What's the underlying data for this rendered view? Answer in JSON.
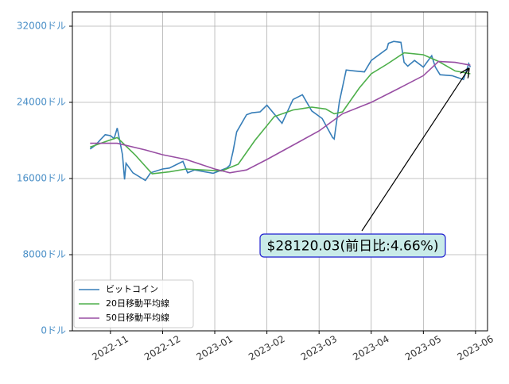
{
  "chart_data": {
    "type": "line",
    "xlim": [
      -0.73,
      7.23
    ],
    "xticks": [
      {
        "value": 0,
        "label": "2022-11"
      },
      {
        "value": 1,
        "label": "2022-12"
      },
      {
        "value": 2,
        "label": "2023-01"
      },
      {
        "value": 3,
        "label": "2023-02"
      },
      {
        "value": 4,
        "label": "2023-03"
      },
      {
        "value": 5,
        "label": "2023-04"
      },
      {
        "value": 6,
        "label": "2023-05"
      },
      {
        "value": 7,
        "label": "2023-06"
      }
    ],
    "ylim": [
      0,
      33500
    ],
    "yticks": [
      {
        "value": 0,
        "label": "0ドル"
      },
      {
        "value": 8000,
        "label": "8000ドル"
      },
      {
        "value": 16000,
        "label": "16000ドル"
      },
      {
        "value": 24000,
        "label": "24000ドル"
      },
      {
        "value": 32000,
        "label": "32000ドル"
      }
    ],
    "grid": true,
    "legend": "lower left",
    "annotation": "$28120.03(前日比:4.66%)",
    "series": [
      {
        "name": "ビットコイン",
        "color": "#377eb8",
        "x": [
          -0.39,
          -0.29,
          -0.19,
          -0.1,
          0.0,
          0.07,
          0.13,
          0.23,
          0.27,
          0.3,
          0.43,
          0.67,
          0.77,
          1.0,
          1.13,
          1.39,
          1.48,
          1.61,
          1.97,
          2.23,
          2.29,
          2.35,
          2.42,
          2.61,
          2.71,
          2.87,
          3.0,
          3.29,
          3.5,
          3.68,
          3.86,
          4.06,
          4.26,
          4.29,
          4.39,
          4.52,
          4.68,
          4.87,
          5.0,
          5.3,
          5.33,
          5.43,
          5.57,
          5.63,
          5.7,
          5.83,
          6.0,
          6.16,
          6.23,
          6.32,
          6.55,
          6.77,
          6.87,
          6.9
        ],
        "values": [
          19100,
          19500,
          20090,
          20600,
          20500,
          20200,
          21300,
          18500,
          15900,
          17600,
          16600,
          15800,
          16600,
          17000,
          17100,
          17800,
          16600,
          16900,
          16550,
          17100,
          17400,
          18850,
          20900,
          22700,
          22900,
          23000,
          23700,
          21800,
          24300,
          24800,
          23100,
          22300,
          20300,
          20150,
          24100,
          27400,
          27300,
          27200,
          28400,
          29600,
          30200,
          30400,
          30300,
          28200,
          27800,
          28400,
          27700,
          28900,
          27700,
          26900,
          26800,
          26400,
          28070,
          27700
        ]
      },
      {
        "name": "20日移動平均線",
        "color": "#4daf4a",
        "x": [
          -0.39,
          -0.03,
          0.13,
          0.47,
          0.8,
          1.13,
          1.45,
          1.77,
          2.13,
          2.45,
          2.77,
          3.14,
          3.5,
          3.86,
          4.13,
          4.29,
          4.45,
          4.77,
          5.0,
          5.3,
          5.63,
          6.0,
          6.29,
          6.61,
          6.9
        ],
        "values": [
          19300,
          20000,
          20300,
          18500,
          16500,
          16700,
          17000,
          16900,
          16800,
          17500,
          20000,
          22500,
          23200,
          23500,
          23300,
          22800,
          23000,
          25500,
          27000,
          28000,
          29200,
          29000,
          28300,
          27300,
          27000
        ]
      },
      {
        "name": "50日移動平均線",
        "color": "#984ea3",
        "x": [
          -0.39,
          0.13,
          0.67,
          1.0,
          1.45,
          2.0,
          2.29,
          2.61,
          3.0,
          3.5,
          4.0,
          4.45,
          5.0,
          5.47,
          6.0,
          6.29,
          6.61,
          6.9
        ],
        "values": [
          19700,
          19700,
          19000,
          18500,
          18000,
          17000,
          16600,
          16900,
          18000,
          19500,
          21000,
          22800,
          24000,
          25300,
          26800,
          28300,
          28200,
          27900
        ]
      }
    ]
  }
}
